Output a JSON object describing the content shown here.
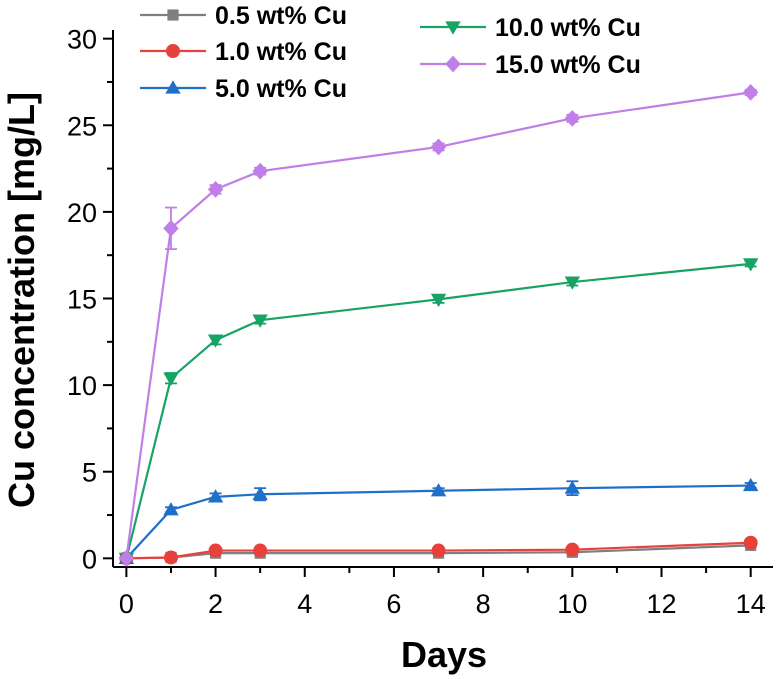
{
  "chart_data": {
    "type": "line",
    "title": "",
    "xlabel": "Days",
    "ylabel": "Cu concentration [mg/L]",
    "xlim": [
      -0.3,
      14.5
    ],
    "ylim": [
      -0.5,
      30.5
    ],
    "xticks": [
      0,
      2,
      4,
      6,
      8,
      10,
      12,
      14
    ],
    "yticks": [
      0,
      5,
      10,
      15,
      20,
      25,
      30
    ],
    "x": [
      0,
      1,
      2,
      3,
      7,
      10,
      14
    ],
    "grid": false,
    "legend_position": "top",
    "series": [
      {
        "name": "0.5 wt% Cu",
        "color": "#7f7f7f",
        "marker": "square",
        "values": [
          0.0,
          0.05,
          0.3,
          0.3,
          0.3,
          0.35,
          0.75
        ],
        "errors": [
          0,
          0.05,
          0.08,
          0.05,
          0.05,
          0.08,
          0.08
        ]
      },
      {
        "name": "1.0 wt% Cu",
        "color": "#e8403a",
        "marker": "circle",
        "values": [
          0.0,
          0.05,
          0.45,
          0.45,
          0.45,
          0.5,
          0.9
        ],
        "errors": [
          0,
          0.05,
          0.08,
          0.05,
          0.05,
          0.08,
          0.08
        ]
      },
      {
        "name": "5.0 wt% Cu",
        "color": "#1f6fc9",
        "marker": "triangle-up",
        "values": [
          0.0,
          2.8,
          3.55,
          3.7,
          3.9,
          4.05,
          4.2
        ],
        "errors": [
          0,
          0.15,
          0.2,
          0.35,
          0.15,
          0.4,
          0.15
        ]
      },
      {
        "name": "10.0 wt% Cu",
        "color": "#17a364",
        "marker": "triangle-down",
        "values": [
          0.0,
          10.4,
          12.6,
          13.75,
          14.95,
          15.95,
          17.0
        ],
        "errors": [
          0,
          0.3,
          0.25,
          0.2,
          0.2,
          0.2,
          0.15
        ]
      },
      {
        "name": "15.0 wt% Cu",
        "color": "#c07ee8",
        "marker": "diamond",
        "values": [
          0.0,
          19.05,
          21.3,
          22.35,
          23.75,
          25.4,
          26.9
        ],
        "errors": [
          0,
          1.2,
          0.25,
          0.2,
          0.2,
          0.2,
          0.15
        ]
      }
    ]
  }
}
